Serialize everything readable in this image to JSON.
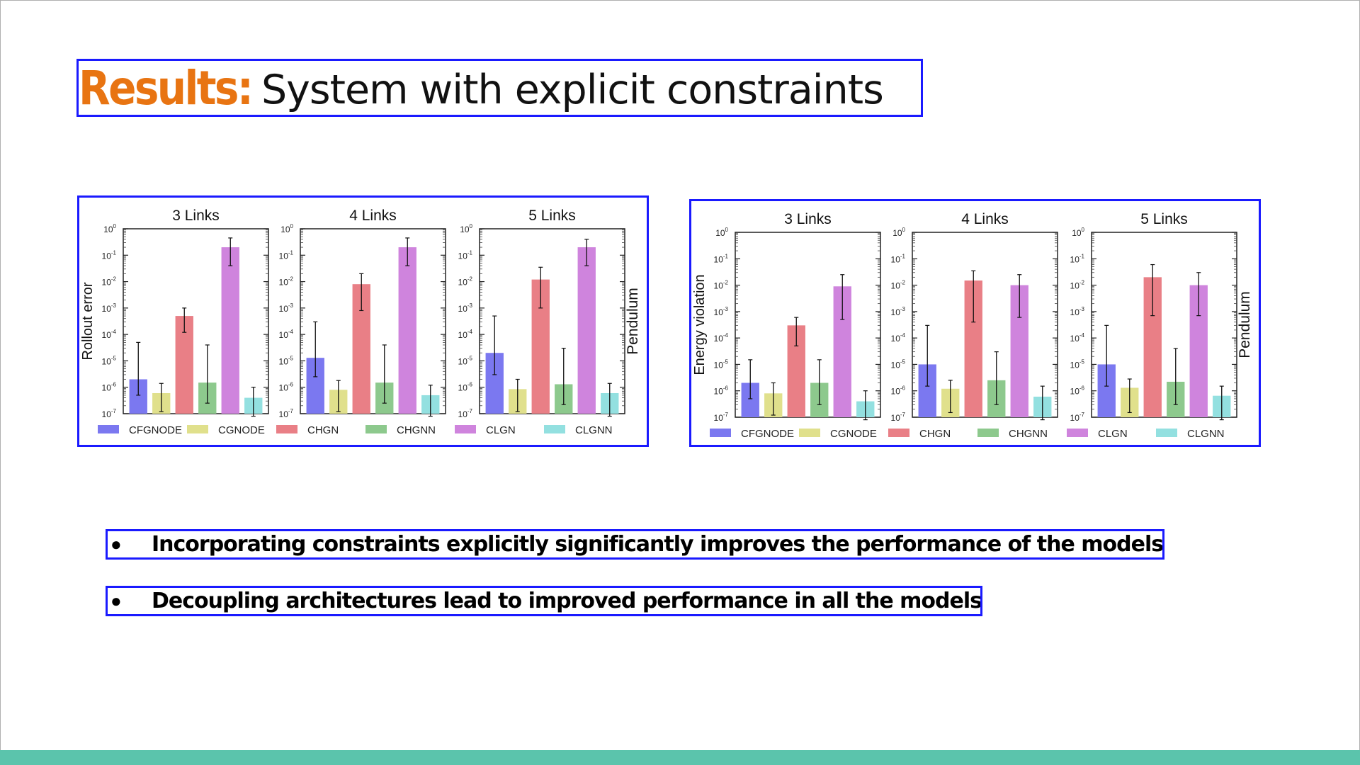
{
  "slide": {
    "title_accent": "Results:",
    "title_rest": "System with explicit constraints",
    "accent_color": "#e87412",
    "bar_color": "#5bc4ac",
    "bullets": [
      "Incorporating constraints explicitly significantly improves the performance of the models",
      "Decoupling architectures lead to improved performance in all the models"
    ]
  },
  "chart_data": [
    {
      "type": "bar",
      "ylabel": "Rollout error",
      "row_label": "Pendulum",
      "yscale": "log",
      "ylim": [
        1e-07,
        1
      ],
      "tick_exponents": [
        "0",
        "-1",
        "-2",
        "-3",
        "-4",
        "-5",
        "-6",
        "-7"
      ],
      "legend_position": "bottom",
      "series": [
        {
          "name": "CFGNODE",
          "color": "#7b78f0"
        },
        {
          "name": "CGNODE",
          "color": "#e0e08c"
        },
        {
          "name": "CHGN",
          "color": "#e97f86"
        },
        {
          "name": "CHGNN",
          "color": "#8dc98d"
        },
        {
          "name": "CLGN",
          "color": "#cf84dd"
        },
        {
          "name": "CLGNN",
          "color": "#93e0e0"
        }
      ],
      "panels": [
        {
          "title": "3 Links",
          "values": [
            2e-06,
            6e-07,
            0.0005,
            1.5e-06,
            0.2,
            4e-07
          ],
          "err_lo": [
            5e-07,
            1.2e-07,
            0.00012,
            2.5e-07,
            0.04,
            8e-08
          ],
          "err_hi": [
            5e-05,
            1.4e-06,
            0.001,
            4e-05,
            0.45,
            1e-06
          ]
        },
        {
          "title": "4 Links",
          "values": [
            1.3e-05,
            8e-07,
            0.008,
            1.5e-06,
            0.2,
            5e-07
          ],
          "err_lo": [
            2.5e-06,
            1.2e-07,
            0.0008,
            2.5e-07,
            0.04,
            8e-08
          ],
          "err_hi": [
            0.0003,
            1.8e-06,
            0.02,
            4e-05,
            0.45,
            1.2e-06
          ]
        },
        {
          "title": "5 Links",
          "values": [
            2e-05,
            8.5e-07,
            0.012,
            1.3e-06,
            0.2,
            6e-07
          ],
          "err_lo": [
            3e-06,
            1.2e-07,
            0.001,
            2.2e-07,
            0.04,
            8e-08
          ],
          "err_hi": [
            0.0005,
            2e-06,
            0.035,
            3e-05,
            0.4,
            1.4e-06
          ]
        }
      ]
    },
    {
      "type": "bar",
      "ylabel": "Energy violation",
      "row_label": "Pendulum",
      "yscale": "log",
      "ylim": [
        1e-07,
        1
      ],
      "tick_exponents": [
        "0",
        "-1",
        "-2",
        "-3",
        "-4",
        "-5",
        "-6",
        "-7"
      ],
      "legend_position": "bottom",
      "series": [
        {
          "name": "CFGNODE",
          "color": "#7b78f0"
        },
        {
          "name": "CGNODE",
          "color": "#e0e08c"
        },
        {
          "name": "CHGN",
          "color": "#e97f86"
        },
        {
          "name": "CHGNN",
          "color": "#8dc98d"
        },
        {
          "name": "CLGN",
          "color": "#cf84dd"
        },
        {
          "name": "CLGNN",
          "color": "#93e0e0"
        }
      ],
      "panels": [
        {
          "title": "3 Links",
          "values": [
            2e-06,
            8e-07,
            0.0003,
            2e-06,
            0.009,
            4e-07
          ],
          "err_lo": [
            5e-07,
            1.2e-07,
            5e-05,
            3e-07,
            0.0005,
            8e-08
          ],
          "err_hi": [
            1.5e-05,
            2e-06,
            0.0006,
            1.5e-05,
            0.025,
            1e-06
          ]
        },
        {
          "title": "4 Links",
          "values": [
            1e-05,
            1.2e-06,
            0.015,
            2.5e-06,
            0.01,
            6e-07
          ],
          "err_lo": [
            1.5e-06,
            1.5e-07,
            0.0004,
            3e-07,
            0.0006,
            8e-08
          ],
          "err_hi": [
            0.0003,
            2.5e-06,
            0.035,
            3e-05,
            0.025,
            1.5e-06
          ]
        },
        {
          "title": "5 Links",
          "values": [
            1e-05,
            1.3e-06,
            0.02,
            2.2e-06,
            0.01,
            6.5e-07
          ],
          "err_lo": [
            1.5e-06,
            1.5e-07,
            0.0007,
            3e-07,
            0.0007,
            8e-08
          ],
          "err_hi": [
            0.0003,
            2.8e-06,
            0.06,
            4e-05,
            0.03,
            1.5e-06
          ]
        }
      ]
    }
  ]
}
